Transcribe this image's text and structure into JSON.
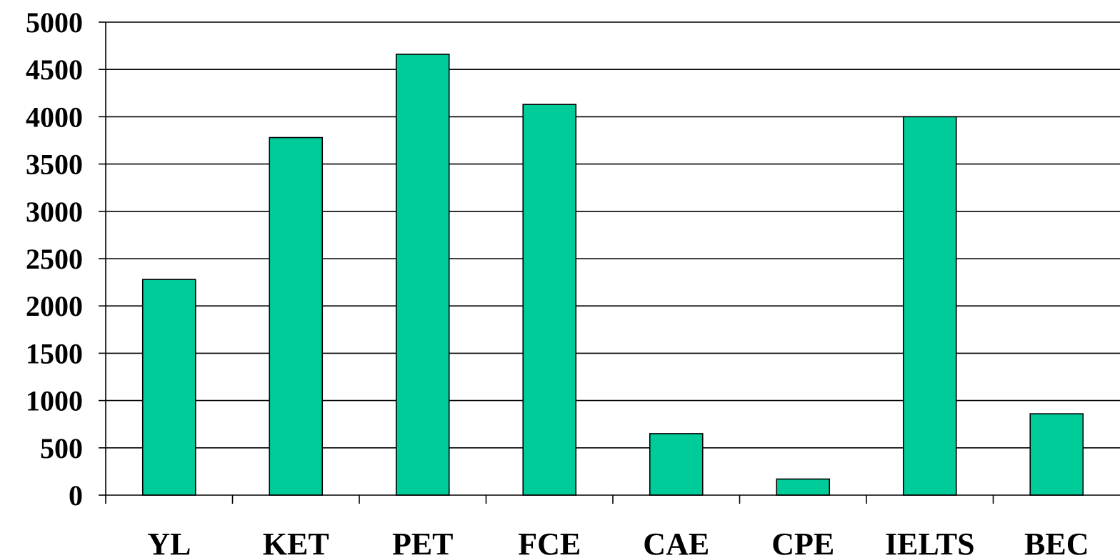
{
  "chart_data": {
    "type": "bar",
    "title": "",
    "xlabel": "",
    "ylabel": "",
    "categories": [
      "YL",
      "KET",
      "PET",
      "FCE",
      "CAE",
      "CPE",
      "IELTS",
      "BEC"
    ],
    "values": [
      2280,
      3780,
      4660,
      4130,
      650,
      170,
      4000,
      860
    ],
    "ylim": [
      0,
      5000
    ],
    "yticks": [
      0,
      500,
      1000,
      1500,
      2000,
      2500,
      3000,
      3500,
      4000,
      4500,
      5000
    ],
    "ytick_labels": [
      "0",
      "500",
      "1000",
      "1500",
      "2000",
      "2500",
      "3000",
      "3500",
      "4000",
      "4500",
      "5000"
    ],
    "grid": true,
    "legend": "none",
    "colors": {
      "bar_fill": "#00CC99",
      "bar_stroke": "#000000",
      "grid": "#000000",
      "axis": "#000000",
      "text": "#000000"
    }
  }
}
